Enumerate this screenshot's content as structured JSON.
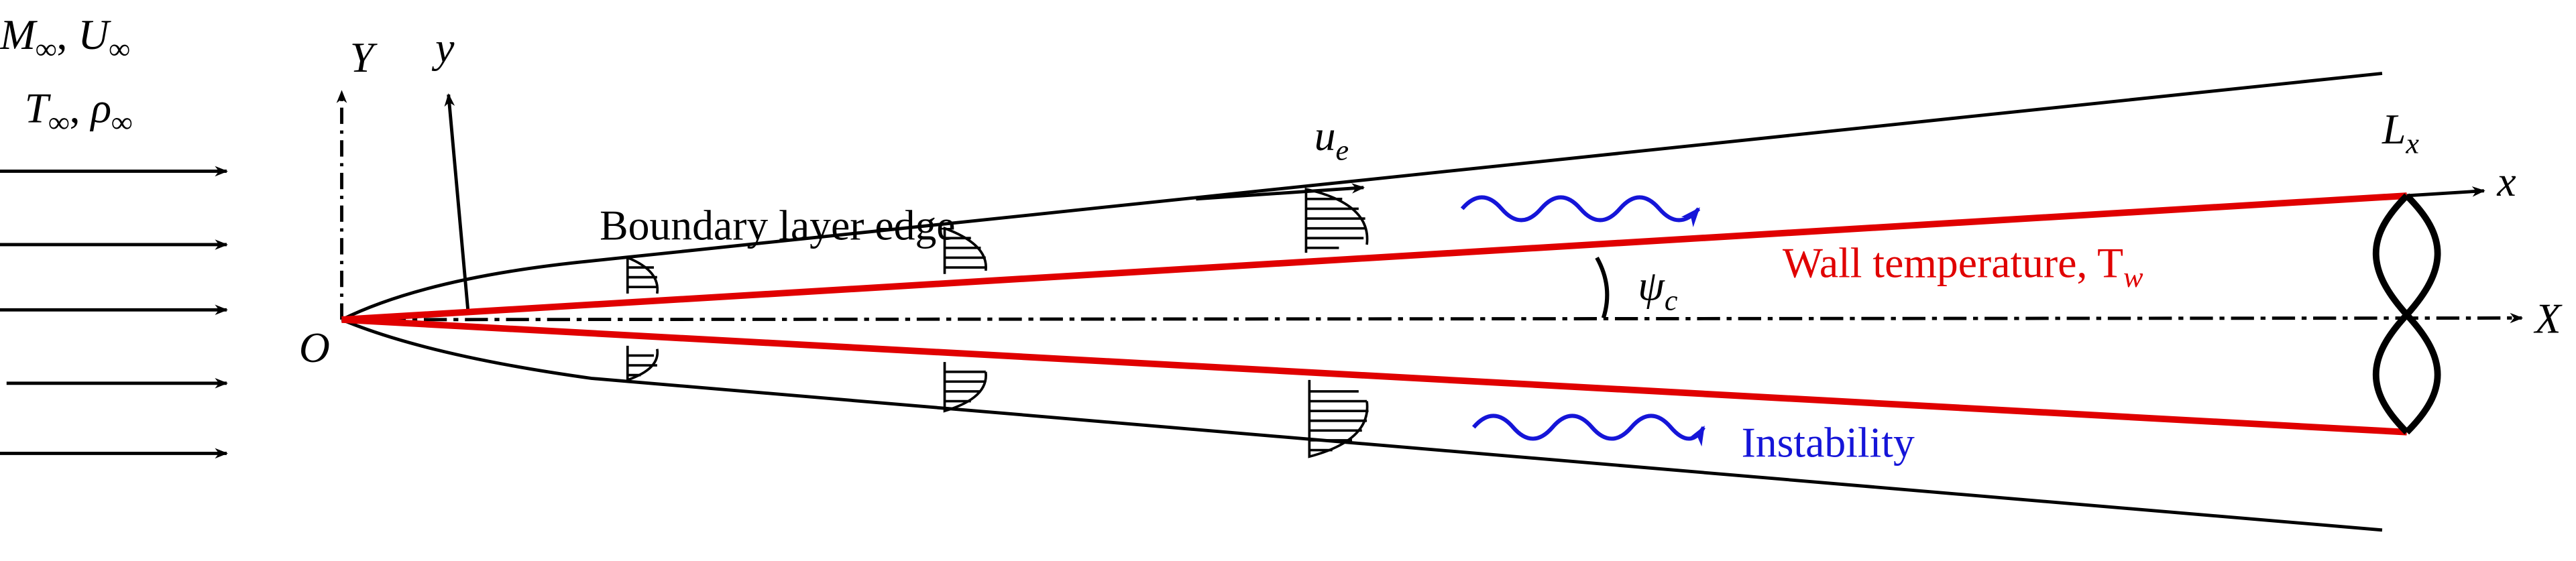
{
  "freestream": {
    "line1": {
      "m": "M",
      "m_sub": "∞",
      "sep": ", ",
      "u": "U",
      "u_sub": "∞"
    },
    "line2": {
      "t": "T",
      "t_sub": "∞",
      "sep": ", ",
      "rho": "ρ",
      "rho_sub": "∞"
    }
  },
  "axes": {
    "Y": "Y",
    "y": "y",
    "origin": "O",
    "x": "x",
    "X": "X"
  },
  "labels": {
    "boundary_layer": "Boundary layer edge",
    "edge_velocity": {
      "base": "u",
      "sub": "e"
    },
    "length": {
      "base": "L",
      "sub": "x"
    },
    "angle": {
      "base": "ψ",
      "sub": "c"
    },
    "wall_temperature": {
      "base": "Wall temperature, T",
      "sub": "w"
    },
    "instability": "Instability"
  }
}
